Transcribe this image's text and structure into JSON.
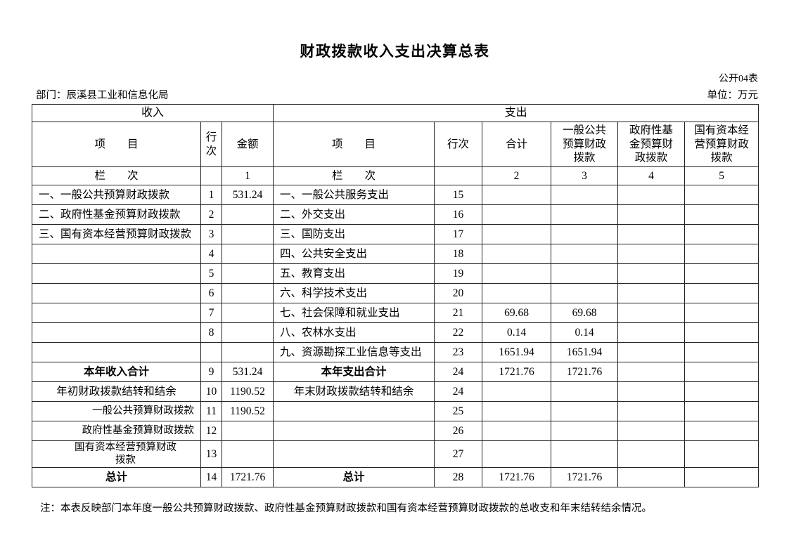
{
  "page": {
    "title": "财政拨款收入支出决算总表",
    "form_code": "公开04表",
    "department_line": "部门：辰溪县工业和信息化局",
    "unit_line": "单位：万元",
    "footnote": "注：本表反映部门本年度一般公共预算财政拨款、政府性基金预算财政拨款和国有资本经营预算财政拨款的总收支和年末结转结余情况。"
  },
  "table": {
    "headers": {
      "income_section": "收入",
      "expense_section": "支出",
      "item": "项　　目",
      "line_no": "行次",
      "line_no_stacked": "行\n次",
      "amount": "金额",
      "total": "合计",
      "general_budget": "一般公共\n预算财政\n拨款",
      "gov_fund_budget": "政府性基\n金预算财\n政拨款",
      "state_capital_budget": "国有资本经\n营预算财政\n拨款",
      "lanci": "栏　　次",
      "col_nums": [
        "1",
        "2",
        "3",
        "4",
        "5"
      ]
    },
    "rows": [
      {
        "c": [
          "一、一般公共预算财政拨款",
          "1",
          "531.24",
          "一、一般公共服务支出",
          "15",
          "",
          "",
          "",
          ""
        ]
      },
      {
        "c": [
          "二、政府性基金预算财政拨款",
          "2",
          "",
          "二、外交支出",
          "16",
          "",
          "",
          "",
          ""
        ]
      },
      {
        "c": [
          "三、国有资本经营预算财政拨款",
          "3",
          "",
          "三、国防支出",
          "17",
          "",
          "",
          "",
          ""
        ]
      },
      {
        "c": [
          "",
          "4",
          "",
          "四、公共安全支出",
          "18",
          "",
          "",
          "",
          ""
        ]
      },
      {
        "c": [
          "",
          "5",
          "",
          "五、教育支出",
          "19",
          "",
          "",
          "",
          ""
        ]
      },
      {
        "c": [
          "",
          "6",
          "",
          "六、科学技术支出",
          "20",
          "",
          "",
          "",
          ""
        ]
      },
      {
        "c": [
          "",
          "7",
          "",
          "七、社会保障和就业支出",
          "21",
          "69.68",
          "69.68",
          "",
          ""
        ]
      },
      {
        "c": [
          "",
          "8",
          "",
          "八、农林水支出",
          "22",
          "0.14",
          "0.14",
          "",
          ""
        ]
      },
      {
        "c": [
          "",
          "",
          "",
          "九、资源勘探工业信息等支出",
          "23",
          "1651.94",
          "1651.94",
          "",
          ""
        ]
      },
      {
        "c": [
          "本年收入合计",
          "9",
          "531.24",
          "本年支出合计",
          "24",
          "1721.76",
          "1721.76",
          "",
          ""
        ],
        "ia": "center",
        "ea": "center",
        "ib": true,
        "eb": true
      },
      {
        "c": [
          "年初财政拨款结转和结余",
          "10",
          "1190.52",
          "年末财政拨款结转和结余",
          "24",
          "",
          "",
          "",
          ""
        ],
        "ia": "center",
        "ea": "center"
      },
      {
        "c": [
          "一般公共预算财政拨款",
          "11",
          "1190.52",
          "",
          "25",
          "",
          "",
          "",
          ""
        ],
        "ia": "right",
        "sub": true
      },
      {
        "c": [
          "政府性基金预算财政拨款",
          "12",
          "",
          "",
          "26",
          "",
          "",
          "",
          ""
        ],
        "ia": "right",
        "sub": true
      },
      {
        "c": [
          "国有资本经营预算财政\n拨款",
          "13",
          "",
          "",
          "27",
          "",
          "",
          "",
          ""
        ],
        "ia": "center",
        "sub": true,
        "tall": true,
        "iwrap": true
      },
      {
        "c": [
          "总计",
          "14",
          "1721.76",
          "总计",
          "28",
          "1721.76",
          "1721.76",
          "",
          ""
        ],
        "ia": "center",
        "ea": "center",
        "ib": true,
        "eb": true
      }
    ]
  }
}
